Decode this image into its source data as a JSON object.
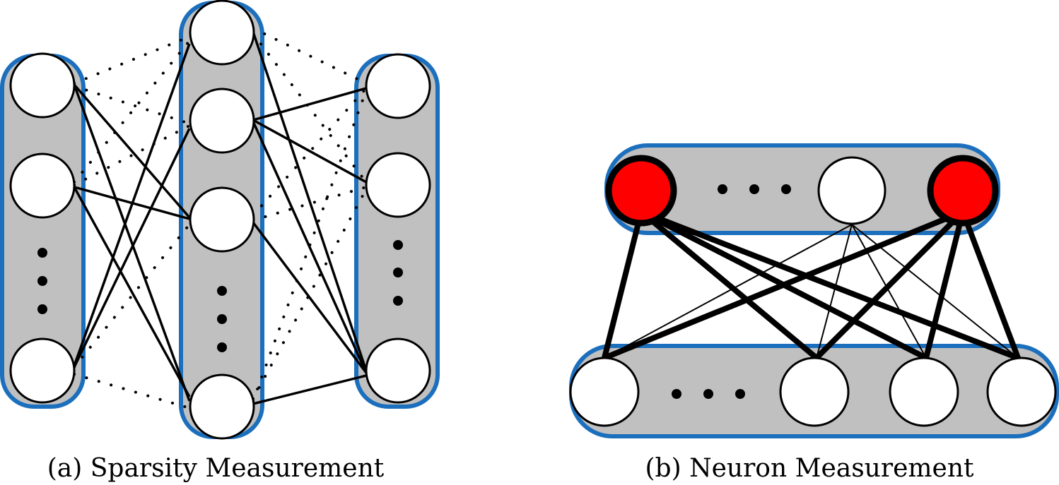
{
  "captions": [
    "(a) Sparsity Measurement",
    "(b) Neuron Measurement"
  ]
}
